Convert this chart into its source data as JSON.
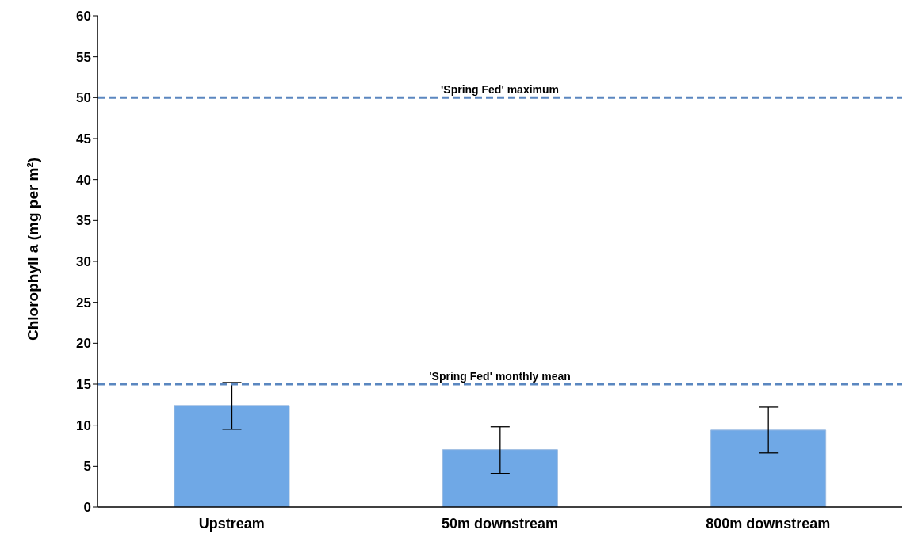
{
  "chart_data": {
    "type": "bar",
    "ylabel": "Chlorophyll a (mg per m²)",
    "categories": [
      "Upstream",
      "50m downstream",
      "800m downstream"
    ],
    "values": [
      12.4,
      7.0,
      9.4
    ],
    "color": "#6fa8e6",
    "errors": [
      [
        9.5,
        15.2
      ],
      [
        4.1,
        9.8
      ],
      [
        6.6,
        12.2
      ]
    ],
    "ylim": [
      0,
      60
    ],
    "yticks": [
      0,
      5,
      10,
      15,
      20,
      25,
      30,
      35,
      40,
      45,
      50,
      55,
      60
    ],
    "grid": false,
    "ref_lines": [
      {
        "axis": "y",
        "value": 50,
        "label": "'Spring Fed' maximum",
        "color": "#5b87c0",
        "line_style": "dashed"
      },
      {
        "axis": "y",
        "value": 15,
        "label": "'Spring Fed' monthly mean",
        "color": "#5b87c0",
        "line_style": "dashed"
      }
    ]
  }
}
